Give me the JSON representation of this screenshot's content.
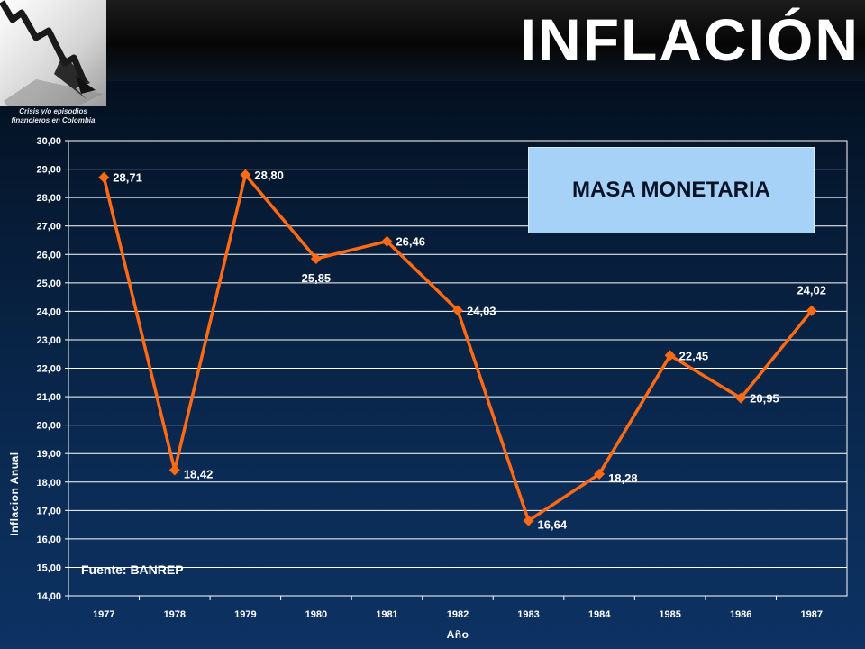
{
  "header": {
    "title": "INFLACIÓN",
    "logo_caption": "Crisis y/o episodios financieros en Colombia"
  },
  "colors": {
    "series_line": "#ff6a14",
    "annotation_box": "#a6d2f7",
    "background": "#0a2a52"
  },
  "annotation": {
    "label": "MASA MONETARIA"
  },
  "source": {
    "label": "Fuente: BANREP"
  },
  "chart_data": {
    "type": "line",
    "title": "",
    "xlabel": "Año",
    "ylabel": "Inflacion Anual",
    "x": [
      "1977",
      "1978",
      "1979",
      "1980",
      "1981",
      "1982",
      "1983",
      "1984",
      "1985",
      "1986",
      "1987"
    ],
    "series": [
      {
        "values": [
          28.71,
          18.42,
          28.8,
          25.85,
          26.46,
          24.03,
          16.64,
          18.28,
          22.45,
          20.95,
          24.02
        ],
        "labels": [
          "28,71",
          "18,42",
          "28,80",
          "25,85",
          "26,46",
          "24,03",
          "16,64",
          "18,28",
          "22,45",
          "20,95",
          "24,02"
        ]
      }
    ],
    "ylim": [
      14,
      30
    ],
    "y_ticks": [
      "14,00",
      "15,00",
      "16,00",
      "17,00",
      "18,00",
      "19,00",
      "20,00",
      "21,00",
      "22,00",
      "23,00",
      "24,00",
      "25,00",
      "26,00",
      "27,00",
      "28,00",
      "29,00",
      "30,00"
    ],
    "grid": true,
    "marker": "diamond"
  }
}
